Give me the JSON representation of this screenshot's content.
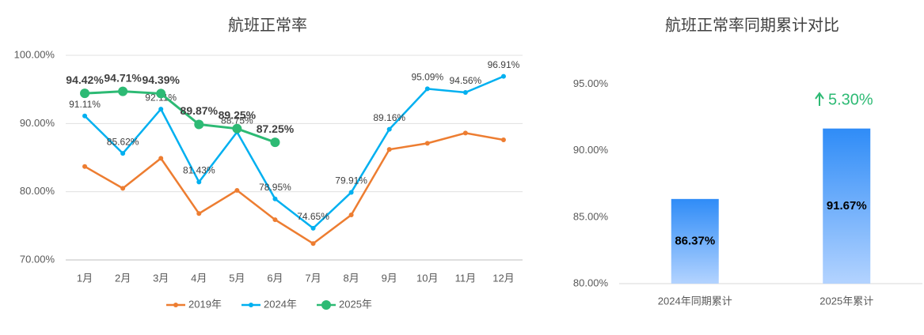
{
  "chart_data": [
    {
      "type": "line",
      "title": "航班正常率",
      "categories": [
        "1月",
        "2月",
        "3月",
        "4月",
        "5月",
        "6月",
        "7月",
        "8月",
        "9月",
        "10月",
        "11月",
        "12月"
      ],
      "ylim": [
        70,
        100
      ],
      "yticks": [
        {
          "value": 70,
          "label": "70.00%"
        },
        {
          "value": 80,
          "label": "80.00%"
        },
        {
          "value": 90,
          "label": "90.00%"
        },
        {
          "value": 100,
          "label": "100.00%"
        }
      ],
      "grid": true,
      "legend": "bottom",
      "series": [
        {
          "name": "2019年",
          "color": "#ed7d31",
          "values": [
            83.7,
            80.5,
            84.9,
            76.8,
            80.2,
            75.9,
            72.4,
            76.6,
            86.2,
            87.1,
            88.6,
            87.6
          ]
        },
        {
          "name": "2024年",
          "color": "#00b0f0",
          "values": [
            91.11,
            85.62,
            92.11,
            81.43,
            88.75,
            78.95,
            74.65,
            79.91,
            89.16,
            95.09,
            94.56,
            96.91
          ],
          "value_labels": [
            "91.11%",
            "85.62%",
            "92.11%",
            "81.43%",
            "88.75%",
            "78.95%",
            "74.65%",
            "79.91%",
            "89.16%",
            "95.09%",
            "94.56%",
            "96.91%"
          ]
        },
        {
          "name": "2025年",
          "color": "#2dba74",
          "values": [
            94.42,
            94.71,
            94.39,
            89.87,
            89.25,
            87.25,
            null,
            null,
            null,
            null,
            null,
            null
          ],
          "value_labels": [
            "94.42%",
            "94.71%",
            "94.39%",
            "89.87%",
            "89.25%",
            "87.25%",
            null,
            null,
            null,
            null,
            null,
            null
          ]
        }
      ]
    },
    {
      "type": "bar",
      "title": "航班正常率同期累计对比",
      "categories": [
        "2024年同期累计",
        "2025年累计"
      ],
      "values": [
        86.37,
        91.67
      ],
      "value_labels": [
        "86.37%",
        "91.67%"
      ],
      "color": "#2f8cf7",
      "ylim": [
        80,
        97
      ],
      "yticks": [
        {
          "value": 80,
          "label": "80.00%"
        },
        {
          "value": 85,
          "label": "85.00%"
        },
        {
          "value": 90,
          "label": "90.00%"
        },
        {
          "value": 95,
          "label": "95.00%"
        }
      ],
      "annotation": "5.30%"
    }
  ]
}
